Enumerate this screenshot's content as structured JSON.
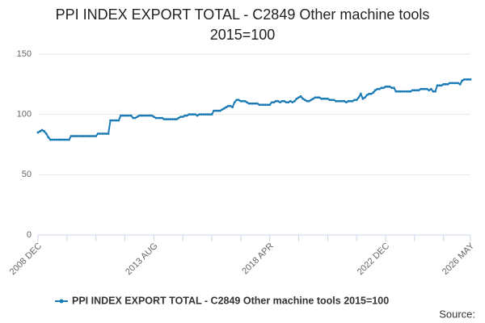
{
  "chart_data": {
    "type": "line",
    "title": "PPI INDEX EXPORT TOTAL - C2849 Other machine tools 2015=100",
    "source": "Source:",
    "categories": [
      "2008 DEC",
      null,
      null,
      null,
      null,
      null,
      null,
      null,
      null,
      null,
      null,
      null,
      null,
      null,
      null,
      null,
      null,
      null,
      null,
      null,
      null,
      null,
      null,
      null,
      null,
      null,
      null,
      null,
      null,
      null,
      null,
      null,
      null,
      null,
      null,
      null,
      null,
      null,
      null,
      null,
      null,
      null,
      null,
      null,
      null,
      null,
      null,
      null,
      null,
      null,
      null,
      null,
      null,
      null,
      null,
      null,
      "2013 AUG",
      null,
      null,
      null,
      null,
      null,
      null,
      null,
      null,
      null,
      null,
      null,
      null,
      null,
      null,
      null,
      null,
      null,
      null,
      null,
      null,
      null,
      null,
      null,
      null,
      null,
      null,
      null,
      null,
      null,
      null,
      null,
      null,
      null,
      null,
      null,
      null,
      null,
      null,
      null,
      null,
      null,
      null,
      null,
      null,
      null,
      null,
      null,
      null,
      null,
      null,
      null,
      null,
      null,
      null,
      null,
      "2018 APR",
      null,
      null,
      null,
      null,
      null,
      null,
      null,
      null,
      null,
      null,
      null,
      null,
      null,
      null,
      null,
      null,
      null,
      null,
      null,
      null,
      null,
      null,
      null,
      null,
      null,
      null,
      null,
      null,
      null,
      null,
      null,
      null,
      null,
      null,
      null,
      null,
      null,
      null,
      null,
      null,
      null,
      null,
      null,
      null,
      null,
      null,
      null,
      null,
      null,
      null,
      null,
      null,
      null,
      null,
      null,
      "2022 DEC",
      null,
      null,
      null,
      null,
      null,
      null,
      null,
      null,
      null,
      null,
      null,
      null,
      null,
      null,
      null,
      null,
      null,
      null,
      null,
      null,
      null,
      null,
      null,
      null,
      null,
      null,
      null,
      null,
      null,
      null,
      null,
      null,
      null,
      null,
      null,
      null,
      null,
      null,
      null,
      null,
      "2026 MAY"
    ],
    "series": [
      {
        "name": "PPI INDEX EXPORT TOTAL - C2849 Other machine tools 2015=100",
        "color": "#1a7ab5",
        "values": [
          85,
          86,
          87,
          86,
          84,
          81,
          79,
          79,
          79,
          79,
          79,
          79,
          79,
          79,
          79,
          79,
          82,
          82,
          82,
          82,
          82,
          82,
          82,
          82,
          82,
          82,
          82,
          82,
          82,
          84,
          84,
          84,
          84,
          84,
          84,
          95,
          95,
          95,
          95,
          95,
          99,
          99,
          99,
          99,
          99,
          99,
          97,
          97,
          98,
          99,
          99,
          99,
          99,
          99,
          99,
          99,
          98,
          97,
          97,
          97,
          97,
          96,
          96,
          96,
          96,
          96,
          96,
          96,
          97,
          98,
          98,
          99,
          99,
          100,
          100,
          100,
          100,
          99,
          100,
          100,
          100,
          100,
          100,
          100,
          100,
          103,
          103,
          103,
          103,
          104,
          105,
          106,
          107,
          107,
          106,
          110,
          112,
          112,
          111,
          111,
          111,
          110,
          109,
          109,
          109,
          109,
          109,
          108,
          108,
          108,
          108,
          108,
          108,
          110,
          110,
          111,
          111,
          110,
          111,
          111,
          110,
          110,
          111,
          110,
          111,
          113,
          114,
          115,
          113,
          112,
          111,
          111,
          112,
          113,
          114,
          114,
          114,
          113,
          113,
          113,
          113,
          112,
          112,
          112,
          111,
          111,
          111,
          111,
          111,
          110,
          111,
          111,
          111,
          112,
          112,
          114,
          117,
          113,
          114,
          116,
          117,
          117,
          118,
          120,
          121,
          121,
          122,
          122,
          123,
          123,
          123,
          122,
          122,
          119,
          119,
          119,
          119,
          119,
          119,
          119,
          119,
          120,
          120,
          120,
          120,
          121,
          121,
          121,
          121,
          120,
          121,
          119,
          119,
          124,
          124,
          124,
          125,
          125,
          125,
          126,
          126,
          126,
          126,
          126,
          125,
          128,
          129,
          129,
          129,
          129
        ]
      }
    ],
    "ylim": [
      0,
      150
    ],
    "yticks": [
      0,
      50,
      100,
      150
    ],
    "grid": true
  }
}
